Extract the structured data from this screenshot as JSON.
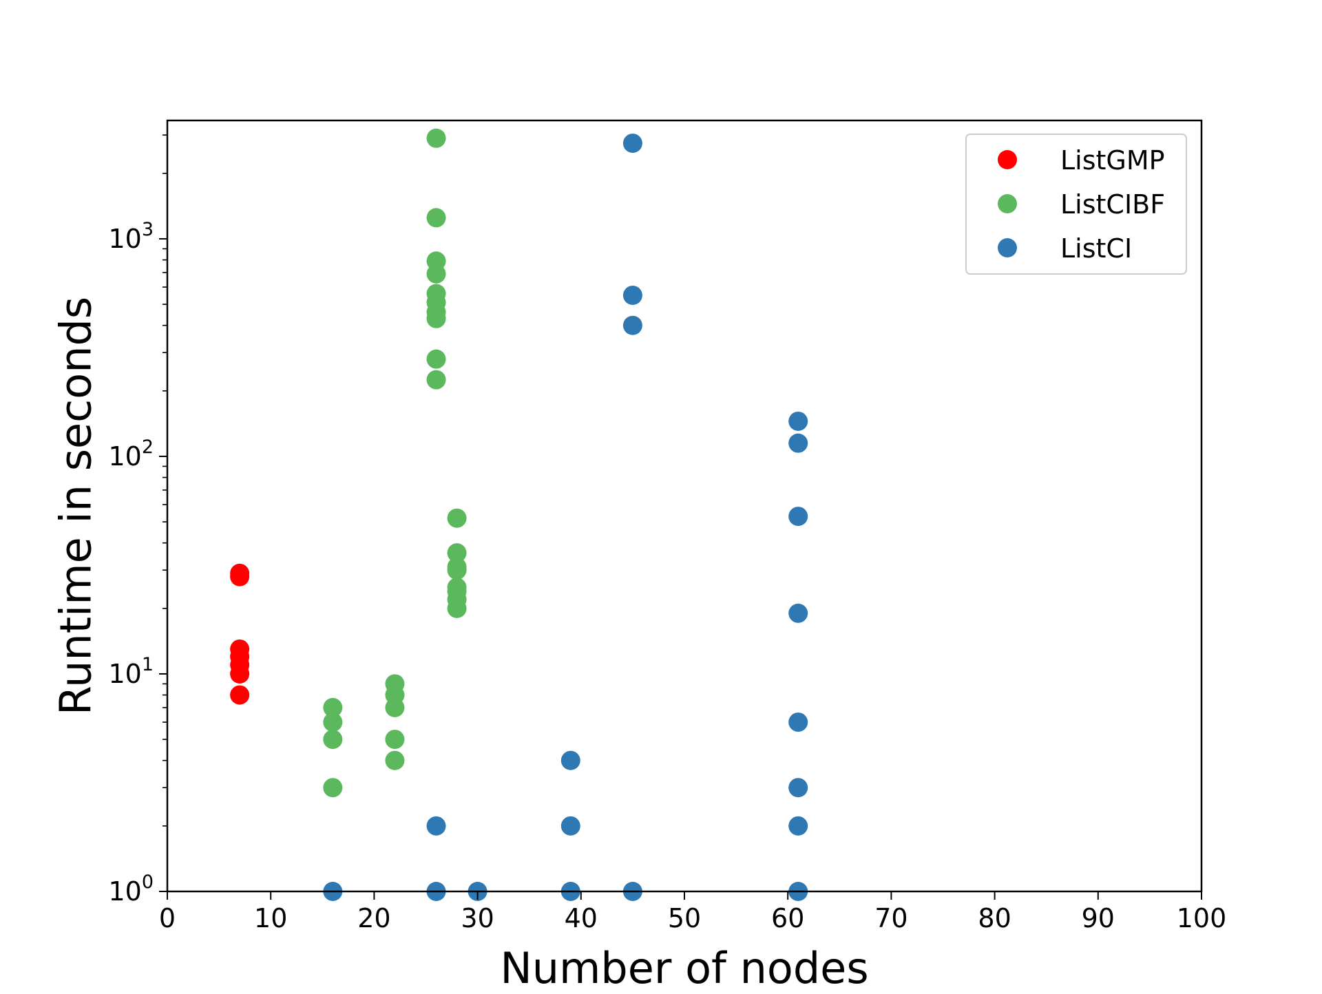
{
  "chart_data": {
    "type": "scatter",
    "xlabel": "Number of nodes",
    "ylabel": "Runtime in seconds",
    "xlim": [
      0,
      100
    ],
    "ylim": [
      1,
      3500
    ],
    "yscale": "log",
    "x_ticks": [
      0,
      10,
      20,
      30,
      40,
      50,
      60,
      70,
      80,
      90,
      100
    ],
    "y_ticks": [
      {
        "value": 1,
        "base": "10",
        "exp": "0"
      },
      {
        "value": 10,
        "base": "10",
        "exp": "1"
      },
      {
        "value": 100,
        "base": "10",
        "exp": "2"
      },
      {
        "value": 1000,
        "base": "10",
        "exp": "3"
      }
    ],
    "grid": false,
    "legend_position": "top-right",
    "series": [
      {
        "name": "ListGMP",
        "color": "#ff0000",
        "points": [
          [
            7,
            29
          ],
          [
            7,
            28
          ],
          [
            7,
            13
          ],
          [
            7,
            12
          ],
          [
            7,
            11
          ],
          [
            7,
            10
          ],
          [
            7,
            8
          ]
        ]
      },
      {
        "name": "ListCIBF",
        "color": "#5cb85c",
        "points": [
          [
            16,
            7
          ],
          [
            16,
            6
          ],
          [
            16,
            5
          ],
          [
            16,
            3
          ],
          [
            22,
            9
          ],
          [
            22,
            8
          ],
          [
            22,
            7
          ],
          [
            22,
            5
          ],
          [
            22,
            4
          ],
          [
            26,
            2900
          ],
          [
            26,
            1250
          ],
          [
            26,
            790
          ],
          [
            26,
            690
          ],
          [
            26,
            560
          ],
          [
            26,
            510
          ],
          [
            26,
            460
          ],
          [
            26,
            430
          ],
          [
            26,
            280
          ],
          [
            26,
            225
          ],
          [
            28,
            52
          ],
          [
            28,
            36
          ],
          [
            28,
            31
          ],
          [
            28,
            30
          ],
          [
            28,
            25
          ],
          [
            28,
            24
          ],
          [
            28,
            22
          ],
          [
            28,
            20
          ]
        ]
      },
      {
        "name": "ListCI",
        "color": "#2e78b4",
        "points": [
          [
            16,
            1
          ],
          [
            26,
            2
          ],
          [
            26,
            1
          ],
          [
            30,
            1
          ],
          [
            39,
            4
          ],
          [
            39,
            2
          ],
          [
            39,
            1
          ],
          [
            45,
            2750
          ],
          [
            45,
            550
          ],
          [
            45,
            400
          ],
          [
            45,
            1
          ],
          [
            61,
            145
          ],
          [
            61,
            115
          ],
          [
            61,
            53
          ],
          [
            61,
            19
          ],
          [
            61,
            6
          ],
          [
            61,
            3
          ],
          [
            61,
            2
          ],
          [
            61,
            1
          ]
        ]
      }
    ]
  }
}
